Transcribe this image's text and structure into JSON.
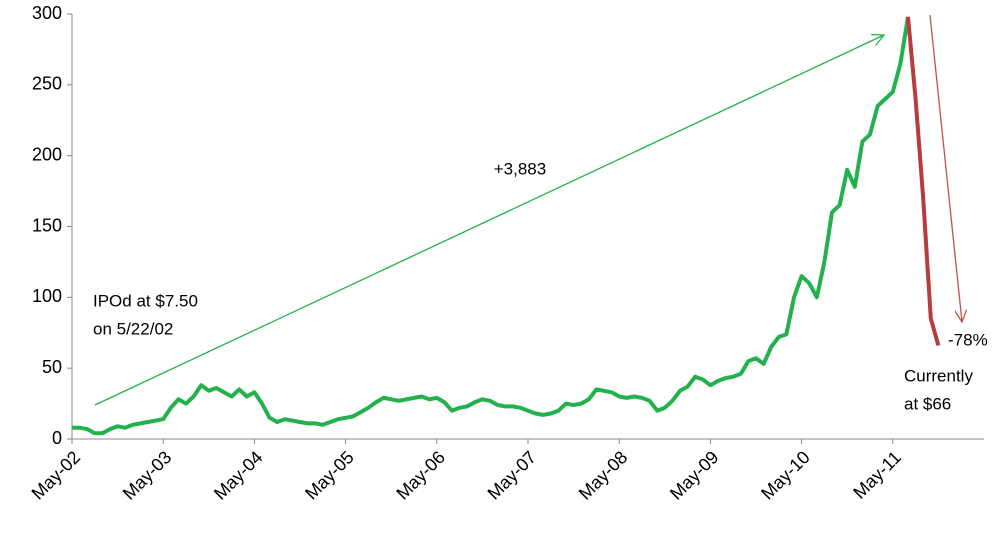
{
  "chart_data": {
    "type": "line",
    "xlim": [
      "2002-05",
      "2012-05"
    ],
    "ylim": [
      0,
      300
    ],
    "yticks": [
      0,
      50,
      100,
      150,
      200,
      250,
      300
    ],
    "xticks": [
      {
        "value": "2002-05",
        "label": "May-02"
      },
      {
        "value": "2003-05",
        "label": "May-03"
      },
      {
        "value": "2004-05",
        "label": "May-04"
      },
      {
        "value": "2005-05",
        "label": "May-05"
      },
      {
        "value": "2006-05",
        "label": "May-06"
      },
      {
        "value": "2007-05",
        "label": "May-07"
      },
      {
        "value": "2008-05",
        "label": "May-08"
      },
      {
        "value": "2009-05",
        "label": "May-09"
      },
      {
        "value": "2010-05",
        "label": "May-10"
      },
      {
        "value": "2011-05",
        "label": "May-11"
      }
    ],
    "series": [
      {
        "color": "#22b14c",
        "x": [
          "2002-05",
          "2002-06",
          "2002-07",
          "2002-08",
          "2002-09",
          "2002-10",
          "2002-11",
          "2002-12",
          "2003-01",
          "2003-02",
          "2003-03",
          "2003-04",
          "2003-05",
          "2003-06",
          "2003-07",
          "2003-08",
          "2003-09",
          "2003-10",
          "2003-11",
          "2003-12",
          "2004-01",
          "2004-02",
          "2004-03",
          "2004-04",
          "2004-05",
          "2004-06",
          "2004-07",
          "2004-08",
          "2004-09",
          "2004-10",
          "2004-11",
          "2004-12",
          "2005-01",
          "2005-02",
          "2005-03",
          "2005-04",
          "2005-05",
          "2005-06",
          "2005-07",
          "2005-08",
          "2005-09",
          "2005-10",
          "2005-11",
          "2005-12",
          "2006-01",
          "2006-02",
          "2006-03",
          "2006-04",
          "2006-05",
          "2006-06",
          "2006-07",
          "2006-08",
          "2006-09",
          "2006-10",
          "2006-11",
          "2006-12",
          "2007-01",
          "2007-02",
          "2007-03",
          "2007-04",
          "2007-05",
          "2007-06",
          "2007-07",
          "2007-08",
          "2007-09",
          "2007-10",
          "2007-11",
          "2007-12",
          "2008-01",
          "2008-02",
          "2008-03",
          "2008-04",
          "2008-05",
          "2008-06",
          "2008-07",
          "2008-08",
          "2008-09",
          "2008-10",
          "2008-11",
          "2008-12",
          "2009-01",
          "2009-02",
          "2009-03",
          "2009-04",
          "2009-05",
          "2009-06",
          "2009-07",
          "2009-08",
          "2009-09",
          "2009-10",
          "2009-11",
          "2009-12",
          "2010-01",
          "2010-02",
          "2010-03",
          "2010-04",
          "2010-05",
          "2010-06",
          "2010-07",
          "2010-08",
          "2010-09",
          "2010-10",
          "2010-11",
          "2010-12",
          "2011-01",
          "2011-02",
          "2011-03",
          "2011-04",
          "2011-05",
          "2011-06",
          "2011-07"
        ],
        "values": [
          8,
          8,
          7,
          4,
          4,
          7,
          9,
          8,
          10,
          11,
          12,
          13,
          14,
          22,
          28,
          25,
          30,
          38,
          34,
          36,
          33,
          30,
          35,
          30,
          33,
          25,
          15,
          12,
          14,
          13,
          12,
          11,
          11,
          10,
          12,
          14,
          15,
          16,
          19,
          22,
          26,
          29,
          28,
          27,
          28,
          29,
          30,
          28,
          29,
          26,
          20,
          22,
          23,
          26,
          28,
          27,
          24,
          23,
          23,
          22,
          20,
          18,
          17,
          18,
          20,
          25,
          24,
          25,
          28,
          35,
          34,
          33,
          30,
          29,
          30,
          29,
          27,
          20,
          22,
          27,
          34,
          37,
          44,
          42,
          38,
          41,
          43,
          44,
          46,
          55,
          57,
          53,
          65,
          72,
          74,
          100,
          115,
          110,
          100,
          125,
          160,
          165,
          190,
          178,
          210,
          215,
          235,
          240,
          245,
          265,
          298
        ]
      },
      {
        "color": "#b83c3c",
        "x": [
          "2011-07",
          "2011-08",
          "2011-09",
          "2011-10",
          "2011-11"
        ],
        "values": [
          298,
          240,
          170,
          85,
          66
        ]
      }
    ],
    "annotations": [
      {
        "text": "+3,883"
      },
      {
        "text": [
          "IPOd at $7.50",
          "on 5/22/02"
        ]
      },
      {
        "text": "-78%"
      },
      {
        "text": [
          "Currently",
          "at $66"
        ]
      }
    ]
  }
}
